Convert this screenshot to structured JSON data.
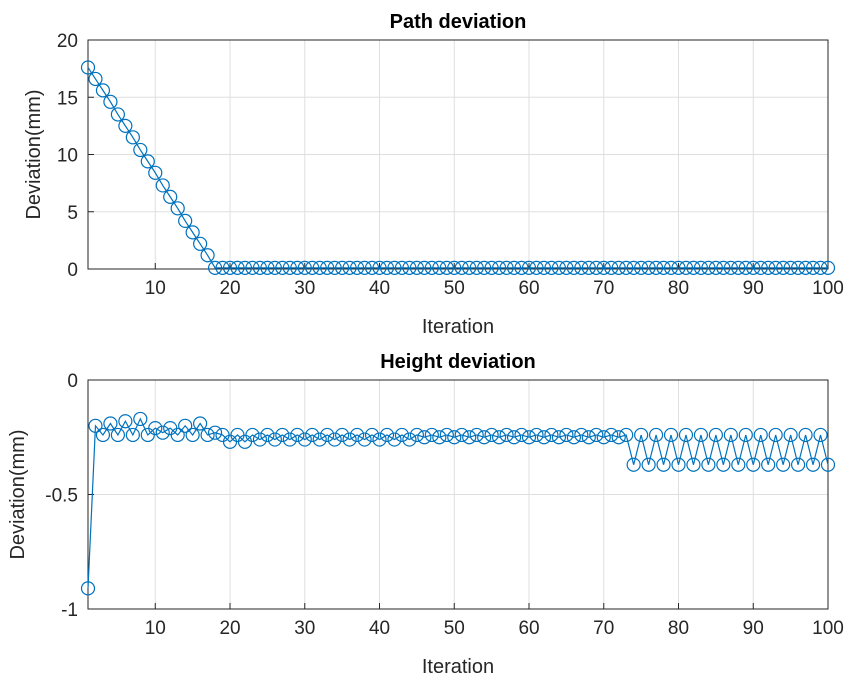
{
  "chart_data": [
    {
      "type": "line",
      "title": "Path deviation",
      "xlabel": "Iteration",
      "ylabel": "Deviation(mm)",
      "xlim": [
        1,
        100
      ],
      "ylim": [
        0,
        20
      ],
      "xticks": [
        10,
        20,
        30,
        40,
        50,
        60,
        70,
        80,
        90,
        100
      ],
      "yticks": [
        0,
        5,
        10,
        15,
        20
      ],
      "grid": true,
      "marker": "circle",
      "color": "#0072bd",
      "x": [
        1,
        2,
        3,
        4,
        5,
        6,
        7,
        8,
        9,
        10,
        11,
        12,
        13,
        14,
        15,
        16,
        17,
        18,
        19,
        20,
        21,
        22,
        23,
        24,
        25,
        26,
        27,
        28,
        29,
        30,
        31,
        32,
        33,
        34,
        35,
        36,
        37,
        38,
        39,
        40,
        41,
        42,
        43,
        44,
        45,
        46,
        47,
        48,
        49,
        50,
        51,
        52,
        53,
        54,
        55,
        56,
        57,
        58,
        59,
        60,
        61,
        62,
        63,
        64,
        65,
        66,
        67,
        68,
        69,
        70,
        71,
        72,
        73,
        74,
        75,
        76,
        77,
        78,
        79,
        80,
        81,
        82,
        83,
        84,
        85,
        86,
        87,
        88,
        89,
        90,
        91,
        92,
        93,
        94,
        95,
        96,
        97,
        98,
        99,
        100
      ],
      "y": [
        17.6,
        16.6,
        15.6,
        14.6,
        13.5,
        12.5,
        11.5,
        10.4,
        9.4,
        8.4,
        7.3,
        6.3,
        5.3,
        4.2,
        3.2,
        2.2,
        1.2,
        0.1,
        0.1,
        0.1,
        0.1,
        0.1,
        0.1,
        0.1,
        0.1,
        0.1,
        0.1,
        0.1,
        0.1,
        0.1,
        0.1,
        0.1,
        0.1,
        0.1,
        0.1,
        0.1,
        0.1,
        0.1,
        0.1,
        0.1,
        0.1,
        0.1,
        0.1,
        0.1,
        0.1,
        0.1,
        0.1,
        0.1,
        0.1,
        0.1,
        0.1,
        0.1,
        0.1,
        0.1,
        0.1,
        0.1,
        0.1,
        0.1,
        0.1,
        0.1,
        0.1,
        0.1,
        0.1,
        0.1,
        0.1,
        0.1,
        0.1,
        0.1,
        0.1,
        0.1,
        0.1,
        0.1,
        0.1,
        0.1,
        0.1,
        0.1,
        0.1,
        0.1,
        0.1,
        0.1,
        0.1,
        0.1,
        0.1,
        0.1,
        0.1,
        0.1,
        0.1,
        0.1,
        0.1,
        0.1,
        0.1,
        0.1,
        0.1,
        0.1,
        0.1,
        0.1,
        0.1,
        0.1,
        0.1,
        0.1
      ]
    },
    {
      "type": "line",
      "title": "Height deviation",
      "xlabel": "Iteration",
      "ylabel": "Deviation(mm)",
      "xlim": [
        1,
        100
      ],
      "ylim": [
        -1,
        0
      ],
      "xticks": [
        10,
        20,
        30,
        40,
        50,
        60,
        70,
        80,
        90,
        100
      ],
      "yticks": [
        -1,
        -0.5,
        0
      ],
      "grid": true,
      "marker": "circle",
      "color": "#0072bd",
      "x": [
        1,
        2,
        3,
        4,
        5,
        6,
        7,
        8,
        9,
        10,
        11,
        12,
        13,
        14,
        15,
        16,
        17,
        18,
        19,
        20,
        21,
        22,
        23,
        24,
        25,
        26,
        27,
        28,
        29,
        30,
        31,
        32,
        33,
        34,
        35,
        36,
        37,
        38,
        39,
        40,
        41,
        42,
        43,
        44,
        45,
        46,
        47,
        48,
        49,
        50,
        51,
        52,
        53,
        54,
        55,
        56,
        57,
        58,
        59,
        60,
        61,
        62,
        63,
        64,
        65,
        66,
        67,
        68,
        69,
        70,
        71,
        72,
        73,
        74,
        75,
        76,
        77,
        78,
        79,
        80,
        81,
        82,
        83,
        84,
        85,
        86,
        87,
        88,
        89,
        90,
        91,
        92,
        93,
        94,
        95,
        96,
        97,
        98,
        99,
        100
      ],
      "y": [
        -0.91,
        -0.2,
        -0.24,
        -0.19,
        -0.24,
        -0.18,
        -0.24,
        -0.17,
        -0.24,
        -0.21,
        -0.23,
        -0.21,
        -0.24,
        -0.2,
        -0.24,
        -0.19,
        -0.24,
        -0.23,
        -0.24,
        -0.27,
        -0.24,
        -0.27,
        -0.24,
        -0.26,
        -0.24,
        -0.26,
        -0.24,
        -0.26,
        -0.24,
        -0.26,
        -0.24,
        -0.26,
        -0.24,
        -0.26,
        -0.24,
        -0.26,
        -0.24,
        -0.26,
        -0.24,
        -0.26,
        -0.24,
        -0.26,
        -0.24,
        -0.26,
        -0.24,
        -0.25,
        -0.24,
        -0.25,
        -0.24,
        -0.25,
        -0.24,
        -0.25,
        -0.24,
        -0.25,
        -0.24,
        -0.25,
        -0.24,
        -0.25,
        -0.24,
        -0.25,
        -0.24,
        -0.25,
        -0.24,
        -0.25,
        -0.24,
        -0.25,
        -0.24,
        -0.25,
        -0.24,
        -0.25,
        -0.24,
        -0.25,
        -0.24,
        -0.37,
        -0.24,
        -0.37,
        -0.24,
        -0.37,
        -0.24,
        -0.37,
        -0.24,
        -0.37,
        -0.24,
        -0.37,
        -0.24,
        -0.37,
        -0.24,
        -0.37,
        -0.24,
        -0.37,
        -0.24,
        -0.37,
        -0.24,
        -0.37,
        -0.24,
        -0.37,
        -0.24,
        -0.37,
        -0.24,
        -0.37
      ]
    }
  ]
}
